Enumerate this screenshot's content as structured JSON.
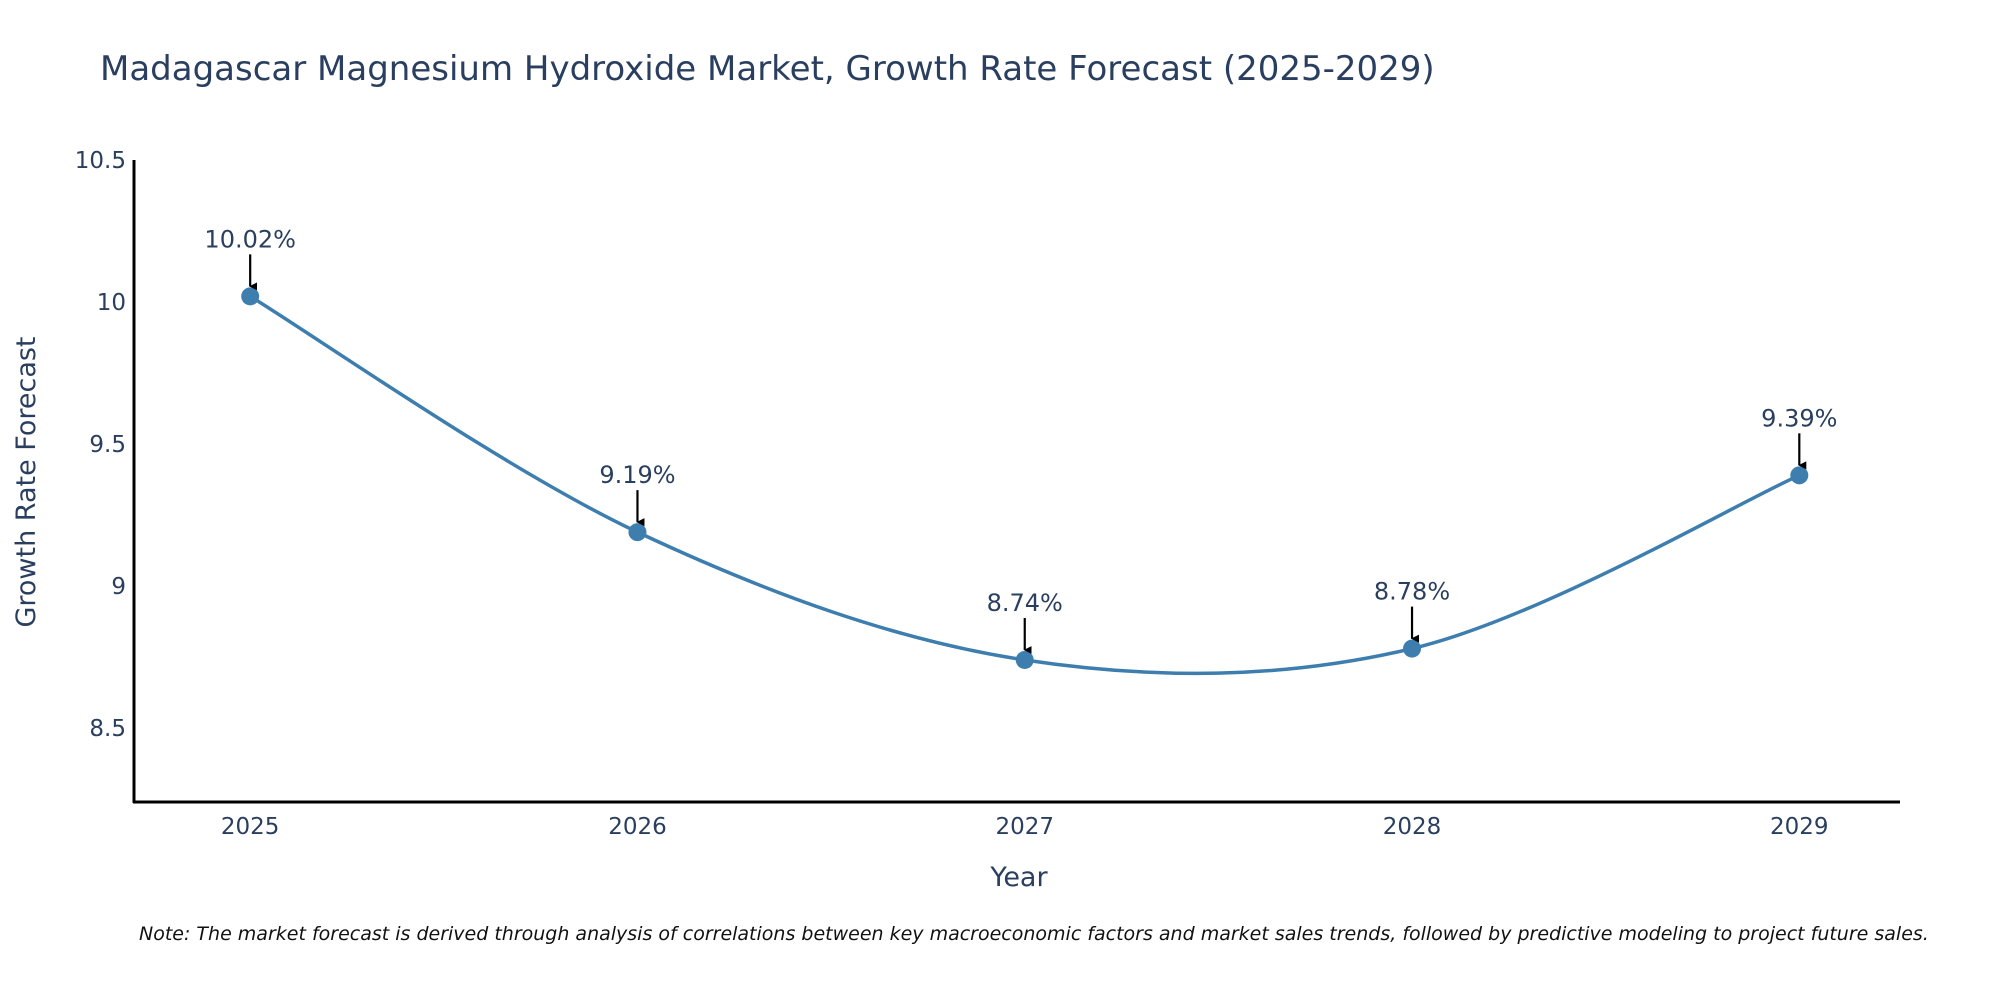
{
  "chart_data": {
    "type": "line",
    "title": "Madagascar Magnesium Hydroxide Market, Growth Rate Forecast (2025-2029)",
    "xlabel": "Year",
    "ylabel": "Growth Rate Forecast",
    "categories": [
      "2025",
      "2026",
      "2027",
      "2028",
      "2029"
    ],
    "x": [
      2025,
      2026,
      2027,
      2028,
      2029
    ],
    "values": [
      10.02,
      9.19,
      8.74,
      8.78,
      9.39
    ],
    "data_labels": [
      "10.02%",
      "9.19%",
      "8.74%",
      "8.78%",
      "9.39%"
    ],
    "ylim": [
      8.24,
      10.5
    ],
    "xlim": [
      2024.7,
      2029.26
    ],
    "yticks": [
      8.5,
      9,
      9.5,
      10,
      10.5
    ],
    "ytick_labels": [
      "8.5",
      "9",
      "9.5",
      "10",
      "10.5"
    ],
    "grid": false,
    "line_shape": "spline",
    "series_color": "#3d7eaf",
    "note": "Note: The market forecast is derived through analysis of correlations between key macroeconomic factors and market sales trends, followed by predictive modeling to project future sales."
  }
}
